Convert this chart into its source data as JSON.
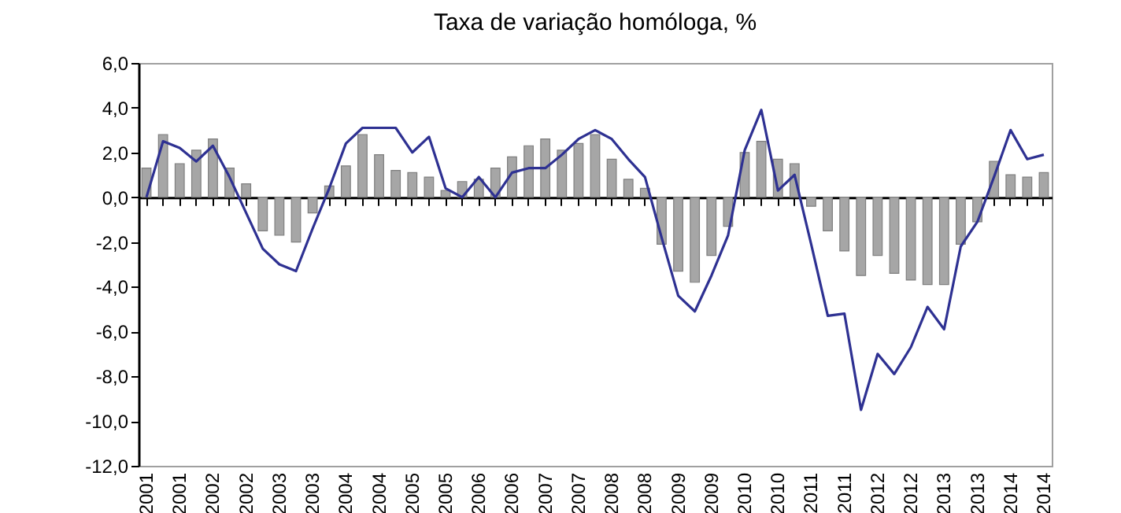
{
  "chart_data": {
    "type": "bar",
    "title": "Taxa de variação homóloga, %",
    "categories": [
      "2001",
      null,
      "2001",
      null,
      "2002",
      null,
      "2002",
      null,
      "2003",
      null,
      "2003",
      null,
      "2004",
      null,
      "2004",
      null,
      "2005",
      null,
      "2005",
      null,
      "2006",
      null,
      "2006",
      null,
      "2007",
      null,
      "2007",
      null,
      "2008",
      null,
      "2008",
      null,
      "2009",
      null,
      "2009",
      null,
      "2010",
      null,
      "2010",
      null,
      "2011",
      null,
      "2011",
      null,
      "2012",
      null,
      "2012",
      null,
      "2013",
      null,
      "2013",
      null,
      "2014",
      null,
      "2014"
    ],
    "series": [
      {
        "color": "#a6a6a6",
        "values": [
          1.3,
          2.8,
          1.5,
          2.1,
          2.6,
          1.3,
          0.6,
          -1.5,
          -1.7,
          -2.0,
          -0.7,
          0.5,
          1.4,
          2.8,
          1.9,
          1.2,
          1.1,
          0.9,
          0.3,
          0.7,
          0.8,
          1.3,
          1.8,
          2.3,
          2.6,
          2.1,
          2.4,
          2.8,
          1.7,
          0.8,
          0.4,
          -2.1,
          -3.3,
          -3.8,
          -2.6,
          -1.3,
          2.0,
          2.5,
          1.7,
          1.5,
          -0.4,
          -1.5,
          -2.4,
          -3.5,
          -2.6,
          -3.4,
          -3.7,
          -3.9,
          -3.9,
          -2.1,
          -1.1,
          1.6,
          1.0,
          0.9,
          1.1
        ]
      },
      {
        "type": "line",
        "color": "#2e3192",
        "values": [
          0.0,
          2.5,
          2.2,
          1.6,
          2.3,
          0.9,
          -0.7,
          -2.3,
          -3.0,
          -3.3,
          -1.4,
          0.4,
          2.4,
          3.1,
          3.1,
          3.1,
          2.0,
          2.7,
          0.4,
          0.0,
          0.9,
          0.0,
          1.1,
          1.3,
          1.3,
          1.9,
          2.6,
          3.0,
          2.6,
          1.7,
          0.9,
          -1.8,
          -4.4,
          -5.1,
          -3.5,
          -1.7,
          2.1,
          3.9,
          0.3,
          1.0,
          -2.1,
          -5.3,
          -5.2,
          -9.5,
          -7.0,
          -7.9,
          -6.7,
          -4.9,
          -5.9,
          -2.2,
          -1.1,
          0.9,
          3.0,
          1.7,
          1.9
        ]
      }
    ],
    "ylim": [
      -12,
      6
    ],
    "yticks": [
      {
        "value": 6,
        "label": "6,0"
      },
      {
        "value": 4,
        "label": "4,0"
      },
      {
        "value": 2,
        "label": "2,0"
      },
      {
        "value": 0,
        "label": "0,0"
      },
      {
        "value": -2,
        "label": "-2,0"
      },
      {
        "value": -4,
        "label": "-4,0"
      },
      {
        "value": -6,
        "label": "-6,0"
      },
      {
        "value": -8,
        "label": "-8,0"
      },
      {
        "value": -10,
        "label": "-10,0"
      },
      {
        "value": -12,
        "label": "-12,0"
      }
    ]
  }
}
